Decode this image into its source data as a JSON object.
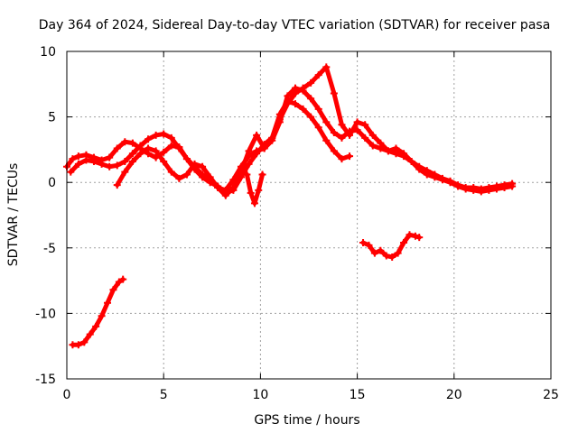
{
  "chart_data": {
    "type": "scatter",
    "title": "Day 364 of 2024, Sidereal Day-to-day VTEC variation (SDTVAR) for receiver pasa",
    "xlabel": "GPS time / hours",
    "ylabel": "SDTVAR / TECUs",
    "xlim": [
      0,
      25
    ],
    "ylim": [
      -15,
      10
    ],
    "xticks": [
      0,
      5,
      10,
      15,
      20,
      25
    ],
    "yticks": [
      -15,
      -10,
      -5,
      0,
      5,
      10
    ],
    "grid": true,
    "legend": "none",
    "marker": "plus",
    "color": "#ff0000",
    "series": [
      {
        "name": "track-main-a",
        "x": [
          0.0,
          0.3,
          0.6,
          1.0,
          1.4,
          1.8,
          2.2,
          2.6,
          3.0,
          3.4,
          3.8,
          4.2,
          4.6,
          5.0,
          5.4,
          5.8,
          6.2,
          6.6,
          7.0,
          7.4,
          7.8,
          8.2,
          8.6,
          9.0,
          9.4,
          9.8,
          10.2,
          10.6,
          11.0,
          11.4,
          11.8,
          12.2,
          12.6,
          13.0,
          13.4,
          13.8,
          14.2,
          14.6,
          15.0,
          15.4,
          15.8,
          16.2,
          16.6,
          17.0,
          17.4,
          17.8,
          18.2,
          18.6,
          19.0,
          19.4,
          19.8,
          20.2,
          20.6,
          21.0,
          21.4,
          21.8,
          22.2,
          22.6,
          23.0
        ],
        "y": [
          1.2,
          1.8,
          2.0,
          2.1,
          1.9,
          1.7,
          1.9,
          2.6,
          3.1,
          3.0,
          2.6,
          2.2,
          1.9,
          2.3,
          2.8,
          2.7,
          1.8,
          1.2,
          0.6,
          0.2,
          -0.4,
          -0.6,
          0.2,
          1.2,
          2.0,
          2.4,
          2.6,
          3.2,
          4.6,
          6.6,
          7.2,
          7.0,
          6.4,
          5.6,
          4.6,
          3.8,
          3.4,
          3.9,
          4.0,
          3.4,
          2.8,
          2.6,
          2.4,
          2.2,
          2.0,
          1.6,
          1.2,
          0.9,
          0.6,
          0.3,
          0.1,
          -0.2,
          -0.4,
          -0.4,
          -0.5,
          -0.4,
          -0.3,
          -0.2,
          -0.1
        ]
      },
      {
        "name": "track-main-b",
        "x": [
          0.2,
          0.6,
          1.0,
          1.4,
          1.8,
          2.2,
          2.6,
          3.0,
          3.4,
          3.8,
          4.2,
          4.6,
          5.0,
          5.4,
          5.8,
          6.2,
          6.6,
          7.0,
          7.4,
          7.8,
          8.2,
          8.6,
          9.0,
          9.4,
          9.8,
          10.2,
          10.6,
          11.0,
          11.4,
          11.8,
          12.2,
          12.6,
          13.0,
          13.4,
          13.8,
          14.2,
          14.6,
          15.0,
          15.4,
          15.8,
          16.2,
          16.6,
          17.0,
          17.4,
          17.8,
          18.2,
          18.6,
          19.0,
          19.4,
          19.8,
          20.2,
          20.6,
          21.0,
          21.4,
          21.8,
          22.2,
          22.6,
          23.0
        ],
        "y": [
          0.8,
          1.4,
          1.7,
          1.6,
          1.4,
          1.2,
          1.3,
          1.6,
          2.2,
          2.8,
          3.3,
          3.6,
          3.7,
          3.4,
          2.6,
          1.8,
          1.0,
          0.4,
          0.0,
          -0.3,
          -0.8,
          -0.6,
          0.4,
          1.4,
          2.2,
          2.9,
          3.4,
          4.8,
          6.0,
          6.8,
          7.2,
          7.6,
          8.2,
          8.8,
          6.8,
          4.4,
          3.6,
          4.6,
          4.4,
          3.6,
          3.0,
          2.4,
          2.6,
          2.2,
          1.6,
          1.0,
          0.6,
          0.4,
          0.2,
          0.0,
          -0.3,
          -0.5,
          -0.6,
          -0.7,
          -0.6,
          -0.5,
          -0.4,
          -0.3
        ]
      },
      {
        "name": "track-main-c",
        "x": [
          2.6,
          3.0,
          3.4,
          3.8,
          4.2,
          4.6,
          5.0,
          5.4,
          5.8,
          6.2,
          6.6,
          7.0,
          7.4,
          7.8,
          8.2,
          8.6,
          9.0,
          9.4,
          9.8,
          10.2,
          10.6,
          11.0,
          11.4,
          11.8,
          12.2,
          12.6,
          13.0,
          13.4,
          13.8,
          14.2,
          14.6
        ],
        "y": [
          -0.2,
          0.8,
          1.6,
          2.2,
          2.6,
          2.4,
          1.6,
          0.8,
          0.3,
          0.6,
          1.4,
          1.2,
          0.4,
          -0.4,
          -1.0,
          -0.4,
          0.8,
          2.4,
          3.6,
          2.6,
          3.4,
          5.2,
          6.2,
          6.0,
          5.6,
          5.0,
          4.2,
          3.2,
          2.4,
          1.8,
          2.0
        ]
      },
      {
        "name": "track-dip",
        "x": [
          9.3,
          9.5,
          9.7,
          9.9,
          10.1
        ],
        "y": [
          0.6,
          -0.8,
          -1.6,
          -0.6,
          0.6
        ]
      },
      {
        "name": "track-lower-right",
        "x": [
          15.3,
          15.6,
          15.9,
          16.2,
          16.5,
          16.8,
          17.1,
          17.4,
          17.7,
          18.0,
          18.2
        ],
        "y": [
          -4.6,
          -4.8,
          -5.4,
          -5.2,
          -5.6,
          -5.7,
          -5.4,
          -4.6,
          -4.0,
          -4.1,
          -4.2
        ]
      },
      {
        "name": "track-lower-left",
        "x": [
          0.3,
          0.6,
          0.9,
          1.2,
          1.5,
          1.8,
          2.1,
          2.4,
          2.7,
          2.9
        ],
        "y": [
          -12.4,
          -12.4,
          -12.2,
          -11.6,
          -11.0,
          -10.2,
          -9.2,
          -8.2,
          -7.6,
          -7.4
        ]
      }
    ]
  }
}
